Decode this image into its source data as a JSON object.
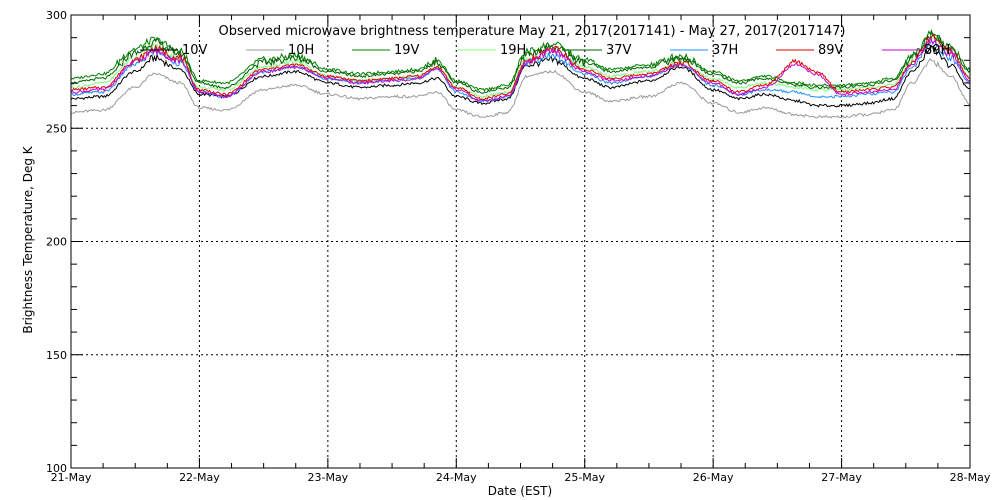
{
  "chart_data": {
    "type": "line",
    "title": "Observed microwave brightness temperature May 21, 2017(2017141) - May 27, 2017(2017147)",
    "xlabel": "Date (EST)",
    "ylabel": "Brightness Temperature, Deg K",
    "x_tick_labels": [
      "21-May",
      "22-May",
      "23-May",
      "24-May",
      "25-May",
      "26-May",
      "27-May",
      "28-May"
    ],
    "x_unit": "days since 21-May 00:00 EST",
    "xlim": [
      0,
      7
    ],
    "ylim": [
      100,
      300
    ],
    "y_ticks": [
      100,
      150,
      200,
      250,
      300
    ],
    "grid": true,
    "legend_position": "top",
    "x": [
      0,
      0.25,
      0.5,
      0.65,
      0.85,
      1.0,
      1.2,
      1.5,
      1.75,
      2.0,
      2.25,
      2.5,
      2.7,
      2.85,
      3.0,
      3.2,
      3.4,
      3.55,
      3.75,
      4.0,
      4.2,
      4.5,
      4.75,
      5.0,
      5.2,
      5.4,
      5.65,
      5.8,
      6.0,
      6.2,
      6.4,
      6.55,
      6.7,
      6.85,
      7.0
    ],
    "series": [
      {
        "name": "10V",
        "color": "#000000",
        "values": [
          263,
          264,
          275,
          281,
          276,
          265,
          264,
          273,
          275,
          270,
          268,
          269,
          270,
          272,
          264,
          261,
          263,
          278,
          280,
          272,
          268,
          271,
          277,
          267,
          263,
          265,
          262,
          260,
          260,
          261,
          263,
          275,
          285,
          278,
          267
        ]
      },
      {
        "name": "10H",
        "color": "#9a9a9a",
        "values": [
          257,
          258,
          268,
          274,
          270,
          259,
          258,
          267,
          269,
          265,
          263,
          264,
          264,
          266,
          258,
          255,
          257,
          273,
          275,
          266,
          262,
          264,
          270,
          261,
          257,
          259,
          256,
          255,
          255,
          256,
          258,
          270,
          280,
          273,
          261
        ]
      },
      {
        "name": "19V",
        "color": "#008000",
        "values": [
          272,
          274,
          285,
          289,
          284,
          271,
          270,
          280,
          282,
          276,
          274,
          275,
          276,
          280,
          271,
          267,
          269,
          284,
          287,
          280,
          276,
          278,
          282,
          275,
          271,
          273,
          270,
          269,
          269,
          270,
          272,
          282,
          292,
          286,
          276
        ]
      },
      {
        "name": "19H",
        "color": "#80ff80",
        "values": [
          268,
          270,
          281,
          286,
          281,
          268,
          267,
          277,
          279,
          273,
          271,
          272,
          273,
          277,
          268,
          264,
          266,
          281,
          284,
          277,
          273,
          275,
          279,
          272,
          268,
          270,
          268,
          267,
          267,
          268,
          269,
          280,
          290,
          283,
          273
        ]
      },
      {
        "name": "37V",
        "color": "#006400",
        "values": [
          270,
          272,
          283,
          288,
          283,
          270,
          268,
          279,
          281,
          275,
          273,
          274,
          275,
          279,
          270,
          266,
          268,
          283,
          286,
          279,
          275,
          277,
          281,
          274,
          270,
          272,
          269,
          268,
          268,
          269,
          271,
          281,
          291,
          285,
          275
        ]
      },
      {
        "name": "37H",
        "color": "#1e90ff",
        "values": [
          265,
          266,
          278,
          284,
          279,
          266,
          264,
          275,
          277,
          272,
          270,
          271,
          272,
          276,
          266,
          262,
          264,
          279,
          282,
          274,
          270,
          273,
          278,
          269,
          265,
          267,
          266,
          264,
          264,
          265,
          266,
          277,
          288,
          281,
          270
        ]
      },
      {
        "name": "89V",
        "color": "#e00000",
        "values": [
          267,
          268,
          280,
          285,
          281,
          267,
          265,
          276,
          278,
          273,
          271,
          272,
          273,
          277,
          268,
          263,
          265,
          280,
          285,
          276,
          272,
          274,
          279,
          271,
          266,
          269,
          279,
          275,
          266,
          267,
          268,
          279,
          290,
          284,
          272
        ]
      },
      {
        "name": "89H",
        "color": "#cc00cc",
        "values": [
          266,
          267,
          279,
          284,
          280,
          266,
          264,
          275,
          277,
          272,
          270,
          271,
          272,
          276,
          267,
          262,
          264,
          279,
          284,
          275,
          271,
          273,
          278,
          270,
          265,
          268,
          278,
          274,
          265,
          266,
          267,
          278,
          289,
          283,
          271
        ]
      }
    ]
  }
}
